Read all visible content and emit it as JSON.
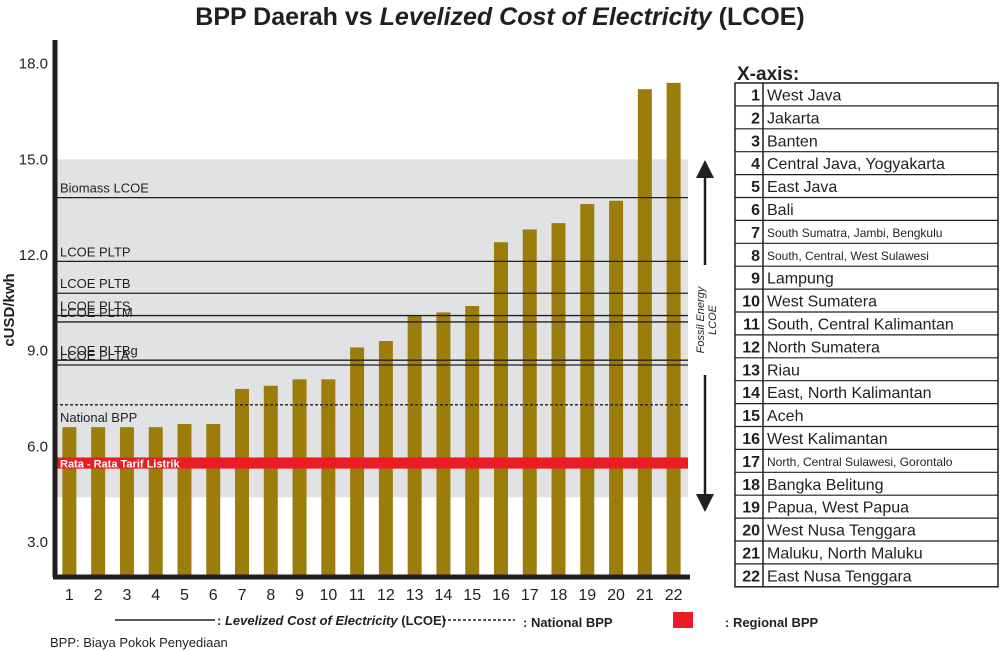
{
  "chart_data": {
    "type": "bar",
    "title_prefix": "BPP Daerah vs ",
    "title_italic": "Levelized Cost of Electricity",
    "title_suffix": " (LCOE)",
    "ylabel": "cUSD/kwh",
    "xlabel": "",
    "ylim": [
      1.9,
      18.9
    ],
    "yticks": [
      "3.0",
      "6.0",
      "9.0",
      "12.0",
      "15.0",
      "18.0"
    ],
    "ytick_values": [
      3,
      6,
      9,
      12,
      15,
      18
    ],
    "categories": [
      "1",
      "2",
      "3",
      "4",
      "5",
      "6",
      "7",
      "8",
      "9",
      "10",
      "11",
      "12",
      "13",
      "14",
      "15",
      "16",
      "17",
      "18",
      "19",
      "20",
      "21",
      "22"
    ],
    "values": [
      6.6,
      6.6,
      6.6,
      6.6,
      6.7,
      6.7,
      7.8,
      7.9,
      8.1,
      8.1,
      9.1,
      9.3,
      10.1,
      10.2,
      10.4,
      12.4,
      12.8,
      13.0,
      13.6,
      13.7,
      17.2,
      17.4
    ],
    "bar_color": "#9c7d0b",
    "fossil_band": {
      "label_line1": "Fossil Energy",
      "label_line2": "LCOE",
      "range": [
        4.4,
        15.0
      ],
      "color": "#e1e2e3"
    },
    "lcoe_lines": [
      {
        "label": "Biomass LCOE",
        "value": 13.8
      },
      {
        "label": "LCOE PLTP",
        "value": 11.8
      },
      {
        "label": "LCOE PLTB",
        "value": 10.8
      },
      {
        "label": "LCOE PLTS",
        "value": 10.1
      },
      {
        "label": "LCOE PLTM",
        "value": 9.9
      },
      {
        "label": "LCOE PLTBg",
        "value": 8.7
      },
      {
        "label": "LCOE PLTA",
        "value": 8.55
      }
    ],
    "national_bpp": {
      "label": "National BPP",
      "value": 7.3
    },
    "tarif": {
      "label": "Rata - Rata Tarif Listrik",
      "range": [
        5.3,
        5.65
      ],
      "color": "#ec1c24"
    },
    "legend": {
      "lcoe_prefix": ": ",
      "lcoe_italic": "Levelized Cost of Electricity",
      "lcoe_suffix": " (LCOE)",
      "national": ": National BPP",
      "regional": ": Regional BPP"
    },
    "footnote": "BPP: Biaya Pokok Penyediaan",
    "grid": false,
    "legend_placement": "bottom"
  },
  "x_axis_key": {
    "title": "X-axis:",
    "items": [
      {
        "num": "1",
        "name": "West Java"
      },
      {
        "num": "2",
        "name": "Jakarta"
      },
      {
        "num": "3",
        "name": "Banten"
      },
      {
        "num": "4",
        "name": "Central Java, Yogyakarta"
      },
      {
        "num": "5",
        "name": "East Java"
      },
      {
        "num": "6",
        "name": "Bali"
      },
      {
        "num": "7",
        "name": "South Sumatra, Jambi, Bengkulu",
        "small": true
      },
      {
        "num": "8",
        "name": "South, Central, West Sulawesi",
        "small": true
      },
      {
        "num": "9",
        "name": "Lampung"
      },
      {
        "num": "10",
        "name": "West Sumatera"
      },
      {
        "num": "11",
        "name": "South, Central Kalimantan"
      },
      {
        "num": "12",
        "name": "North Sumatera"
      },
      {
        "num": "13",
        "name": "Riau"
      },
      {
        "num": "14",
        "name": "East, North Kalimantan"
      },
      {
        "num": "15",
        "name": "Aceh"
      },
      {
        "num": "16",
        "name": "West Kalimantan"
      },
      {
        "num": "17",
        "name": "North, Central Sulawesi, Gorontalo",
        "small": true
      },
      {
        "num": "18",
        "name": "Bangka Belitung"
      },
      {
        "num": "19",
        "name": "Papua, West Papua"
      },
      {
        "num": "20",
        "name": "West Nusa Tenggara"
      },
      {
        "num": "21",
        "name": "Maluku, North Maluku"
      },
      {
        "num": "22",
        "name": "East Nusa Tenggara"
      }
    ]
  }
}
